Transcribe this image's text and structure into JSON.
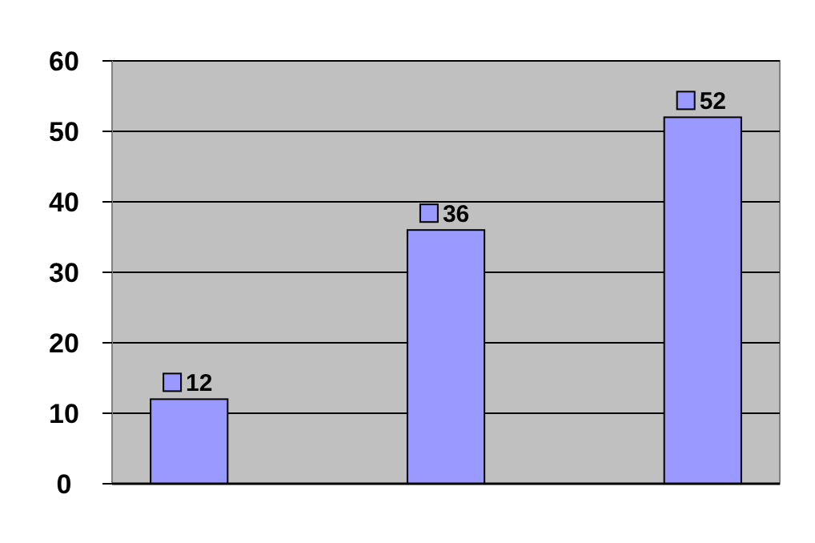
{
  "chart_data": {
    "type": "bar",
    "categories": [
      null,
      null,
      null
    ],
    "values": [
      12,
      36,
      52
    ],
    "color": "#9999ff",
    "ylim": [
      0,
      60
    ],
    "yticks": [
      0,
      10,
      20,
      30,
      40,
      50,
      60
    ],
    "grid": "y",
    "data_labels": true
  }
}
